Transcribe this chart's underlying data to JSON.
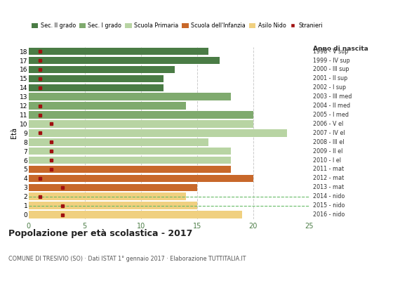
{
  "ages": [
    18,
    17,
    16,
    15,
    14,
    13,
    12,
    11,
    10,
    9,
    8,
    7,
    6,
    5,
    4,
    3,
    2,
    1,
    0
  ],
  "years": [
    "1998 - V sup",
    "1999 - IV sup",
    "2000 - III sup",
    "2001 - II sup",
    "2002 - I sup",
    "2003 - III med",
    "2004 - II med",
    "2005 - I med",
    "2006 - V el",
    "2007 - IV el",
    "2008 - III el",
    "2009 - II el",
    "2010 - I el",
    "2011 - mat",
    "2012 - mat",
    "2013 - mat",
    "2014 - nido",
    "2015 - nido",
    "2016 - nido"
  ],
  "values": [
    16,
    17,
    13,
    12,
    12,
    18,
    14,
    20,
    20,
    23,
    16,
    18,
    18,
    18,
    20,
    15,
    14,
    15,
    19
  ],
  "stranieri": [
    1,
    1,
    1,
    1,
    1,
    0,
    1,
    1,
    2,
    1,
    2,
    2,
    2,
    2,
    1,
    3,
    1,
    3,
    3
  ],
  "bar_colors": [
    "#4a7c45",
    "#4a7c45",
    "#4a7c45",
    "#4a7c45",
    "#4a7c45",
    "#7faa6e",
    "#7faa6e",
    "#7faa6e",
    "#b8d4a3",
    "#b8d4a3",
    "#b8d4a3",
    "#b8d4a3",
    "#b8d4a3",
    "#c8682a",
    "#c8682a",
    "#c8682a",
    "#f0d080",
    "#f0d080",
    "#f0d080"
  ],
  "legend_labels": [
    "Sec. II grado",
    "Sec. I grado",
    "Scuola Primaria",
    "Scuola dell'Infanzia",
    "Asilo Nido",
    "Stranieri"
  ],
  "legend_colors": [
    "#4a7c45",
    "#7faa6e",
    "#b8d4a3",
    "#c8682a",
    "#f0d080",
    "#a01010"
  ],
  "title": "Popolazione per età scolastica - 2017",
  "subtitle": "COMUNE DI TRESIVIO (SO) · Dati ISTAT 1° gennaio 2017 · Elaborazione TUTTITALIA.IT",
  "ylabel_age": "Età",
  "xlabel_year": "Anno di nascita",
  "xlim": [
    0,
    25
  ],
  "xticks": [
    0,
    5,
    10,
    15,
    20,
    25
  ],
  "stranieri_color": "#a01010",
  "background_color": "#ffffff",
  "grid_color": "#cccccc",
  "bar_height": 0.82,
  "dashed_grid_indices": [
    16,
    17
  ],
  "dashed_grid_color": "#66bb66"
}
